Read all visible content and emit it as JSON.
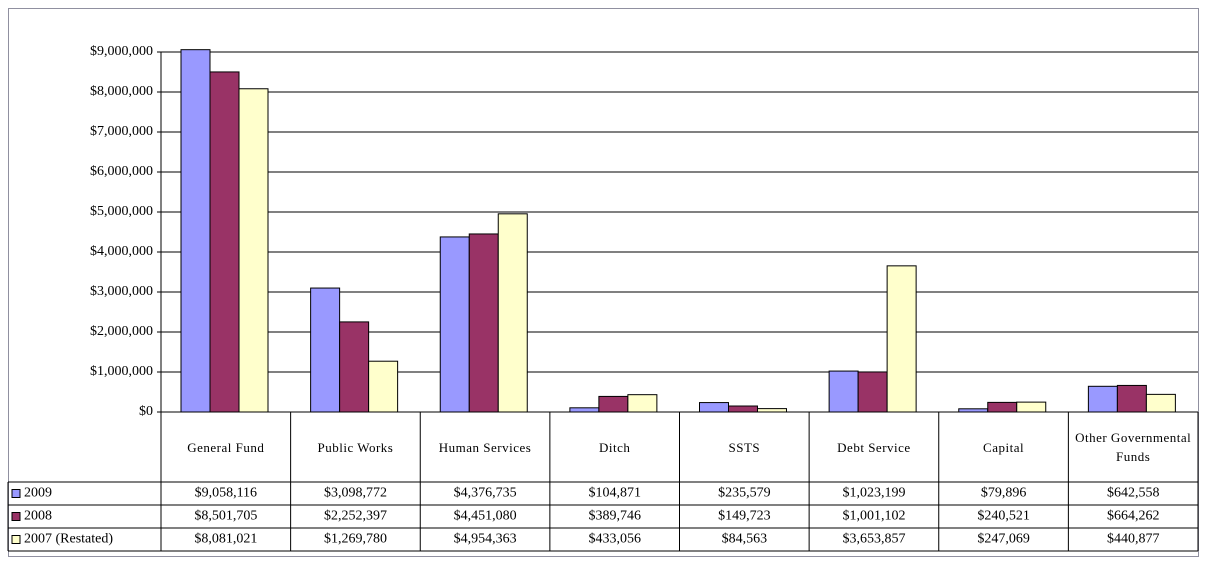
{
  "chart_data": {
    "type": "bar",
    "categories": [
      "General Fund",
      "Public Works",
      "Human Services",
      "Ditch",
      "SSTS",
      "Debt Service",
      "Capital",
      "Other Governmental Funds"
    ],
    "series": [
      {
        "name": "2009",
        "color": "#9999ff",
        "values": [
          9058116,
          3098772,
          4376735,
          104871,
          235579,
          1023199,
          79896,
          642558
        ],
        "value_labels": [
          "$9,058,116",
          "$3,098,772",
          "$4,376,735",
          "$104,871",
          "$235,579",
          "$1,023,199",
          "$79,896",
          "$642,558"
        ]
      },
      {
        "name": "2008",
        "color": "#993366",
        "values": [
          8501705,
          2252397,
          4451080,
          389746,
          149723,
          1001102,
          240521,
          664262
        ],
        "value_labels": [
          "$8,501,705",
          "$2,252,397",
          "$4,451,080",
          "$389,746",
          "$149,723",
          "$1,001,102",
          "$240,521",
          "$664,262"
        ]
      },
      {
        "name": "2007 (Restated)",
        "color": "#ffffcc",
        "values": [
          8081021,
          1269780,
          4954363,
          433056,
          84563,
          3653857,
          247069,
          440877
        ],
        "value_labels": [
          "$8,081,021",
          "$1,269,780",
          "$4,954,363",
          "$433,056",
          "$84,563",
          "$3,653,857",
          "$247,069",
          "$440,877"
        ]
      }
    ],
    "ylim": [
      0,
      9000000
    ],
    "yticks": [
      {
        "value": 0,
        "label": "$0"
      },
      {
        "value": 1000000,
        "label": "$1,000,000"
      },
      {
        "value": 2000000,
        "label": "$2,000,000"
      },
      {
        "value": 3000000,
        "label": "$3,000,000"
      },
      {
        "value": 4000000,
        "label": "$4,000,000"
      },
      {
        "value": 5000000,
        "label": "$5,000,000"
      },
      {
        "value": 6000000,
        "label": "$6,000,000"
      },
      {
        "value": 7000000,
        "label": "$7,000,000"
      },
      {
        "value": 8000000,
        "label": "$8,000,000"
      },
      {
        "value": 9000000,
        "label": "$9,000,000"
      }
    ],
    "grid": true
  }
}
